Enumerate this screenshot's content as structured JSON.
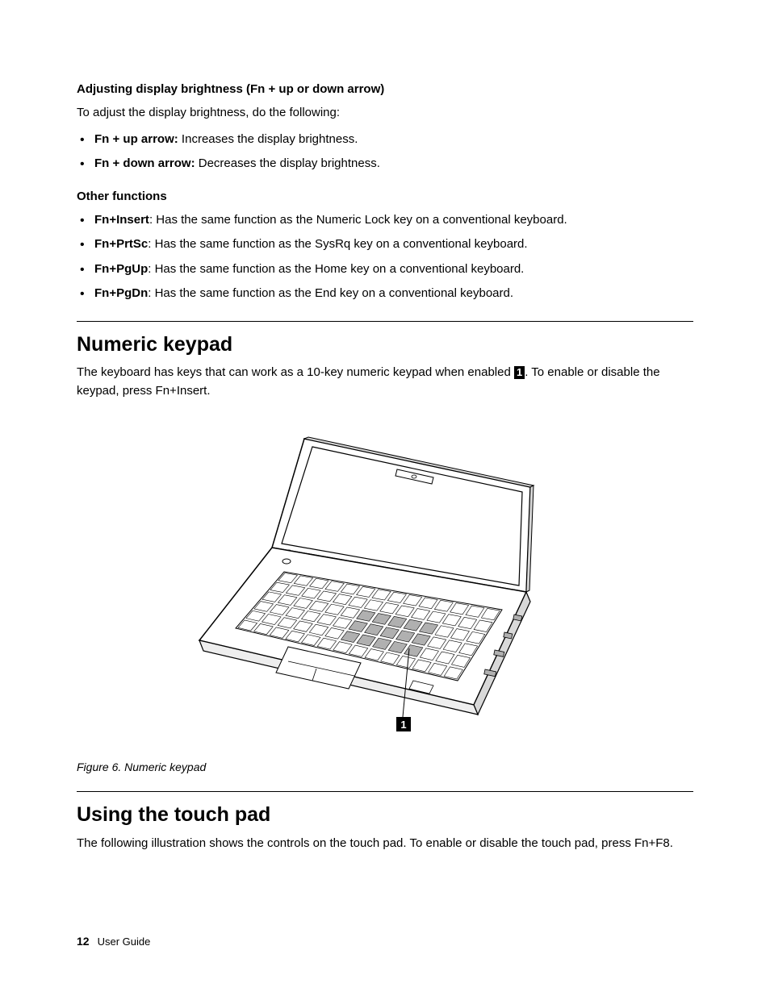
{
  "section1": {
    "heading": "Adjusting display brightness (Fn + up or down arrow)",
    "intro": "To adjust the display brightness, do the following:",
    "items": [
      {
        "key": "Fn + up arrow:",
        "desc": " Increases the display brightness."
      },
      {
        "key": "Fn + down arrow:",
        "desc": " Decreases the display brightness."
      }
    ]
  },
  "section2": {
    "heading": "Other functions",
    "items": [
      {
        "key": "Fn+Insert",
        "desc": ": Has the same function as the Numeric Lock key on a conventional keyboard."
      },
      {
        "key": "Fn+PrtSc",
        "desc": ": Has the same function as the SysRq key on a conventional keyboard."
      },
      {
        "key": "Fn+PgUp",
        "desc": ": Has the same function as the Home key on a conventional keyboard."
      },
      {
        "key": "Fn+PgDn",
        "desc": ": Has the same function as the End key on a conventional keyboard."
      }
    ]
  },
  "numeric": {
    "title": "Numeric keypad",
    "para_a": "The keyboard has keys that can work as a 10-key numeric keypad when enabled ",
    "callout": "1",
    "para_b": ". To enable or disable the keypad, press Fn+Insert.",
    "caption": "Figure 6.  Numeric keypad"
  },
  "touchpad": {
    "title": "Using the touch pad",
    "para": "The following illustration shows the controls on the touch pad. To enable or disable the touch pad, press Fn+F8."
  },
  "footer": {
    "page": "12",
    "label": "User Guide"
  },
  "figure": {
    "callout_label": "1",
    "stroke": "#000000",
    "fill": "#ffffff",
    "shade": "#b0b0b0",
    "shade_light": "#d8d8d8"
  }
}
